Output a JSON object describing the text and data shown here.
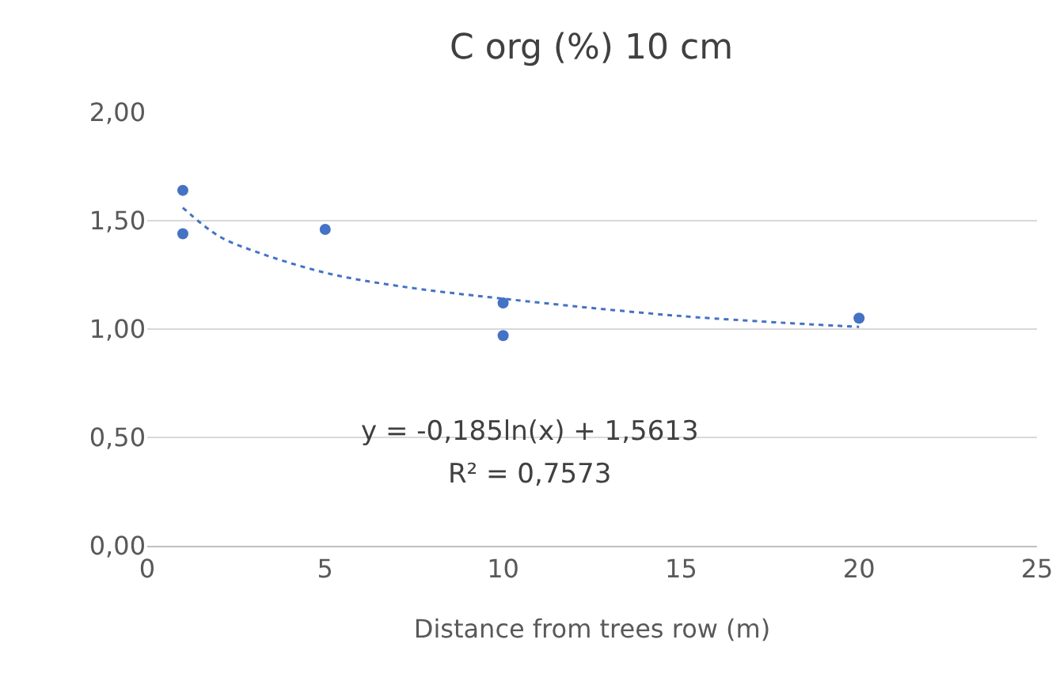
{
  "chart_data": {
    "type": "scatter",
    "title": "C org (%) 10 cm",
    "xlabel": "Distance from trees row (m)",
    "series": [
      {
        "color": "#4472c4",
        "marker": "circle",
        "x": [
          1,
          1,
          5,
          10,
          10,
          20
        ],
        "values": [
          1.64,
          1.44,
          1.46,
          1.12,
          0.97,
          1.05
        ]
      },
      {
        "type": "line",
        "color": "#4472c4",
        "marker": "none",
        "line_style": "dotted",
        "x": [
          1,
          2,
          3,
          5,
          7,
          10,
          15,
          20
        ],
        "values": [
          1.56,
          1.43,
          1.36,
          1.26,
          1.2,
          1.14,
          1.06,
          1.01
        ]
      }
    ],
    "xlim": [
      0,
      25
    ],
    "xticks": [
      0,
      5,
      10,
      15,
      20,
      25
    ],
    "ylim": [
      0,
      2
    ],
    "yticks": [
      {
        "value": 0,
        "label": "0,00"
      },
      {
        "value": 0.5,
        "label": "0,50"
      },
      {
        "value": 1,
        "label": "1,00"
      },
      {
        "value": 1.5,
        "label": "1,50"
      },
      {
        "value": 2,
        "label": "2,00"
      }
    ],
    "grid": "y",
    "legend": false,
    "annotations": [
      "y = -0,185ln(x) + 1,5613",
      "R² = 0,7573"
    ]
  }
}
